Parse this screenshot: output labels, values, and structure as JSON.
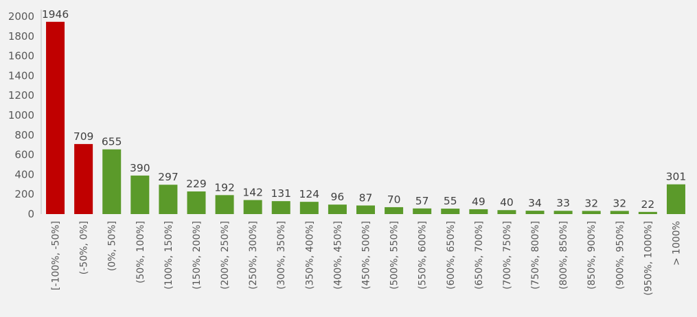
{
  "chart_data": {
    "type": "bar",
    "title": "",
    "xlabel": "",
    "ylabel": "",
    "ylim": [
      0,
      2000
    ],
    "yticks": [
      0,
      200,
      400,
      600,
      800,
      1000,
      1200,
      1400,
      1600,
      1800,
      2000
    ],
    "grid": false,
    "legend": "none",
    "categories": [
      "[-100%, -50%]",
      "(-50%, 0%]",
      "(0%, 50%]",
      "(50%, 100%]",
      "(100%, 150%]",
      "(150%, 200%]",
      "(200%, 250%]",
      "(250%, 300%]",
      "(300%, 350%]",
      "(350%, 400%]",
      "(400%, 450%]",
      "(450%, 500%]",
      "(500%, 550%]",
      "(550%, 600%]",
      "(600%, 650%]",
      "(650%, 700%]",
      "(700%, 750%]",
      "(750%, 800%]",
      "(800%, 850%]",
      "(850%, 900%]",
      "(900%, 950%]",
      "(950%, 1000%]",
      "> 1000%"
    ],
    "values": [
      1946,
      709,
      655,
      390,
      297,
      229,
      192,
      142,
      131,
      124,
      96,
      87,
      70,
      57,
      55,
      49,
      40,
      34,
      33,
      32,
      32,
      22,
      301
    ],
    "colors": {
      "negative": "#c00000",
      "positive": "#5b9a2a",
      "axis": "#bfbfbf",
      "background": "#f2f2f2"
    },
    "negative_count": 2
  }
}
